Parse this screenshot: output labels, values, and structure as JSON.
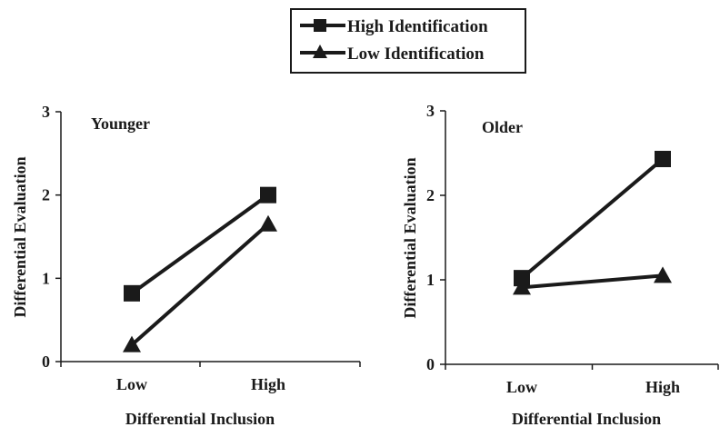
{
  "chart_data": [
    {
      "type": "line",
      "title": "Younger",
      "xlabel": "Differential Inclusion",
      "ylabel": "Differential Evaluation",
      "categories": [
        "Low",
        "High"
      ],
      "ylim": [
        0,
        3
      ],
      "yticks": [
        "0",
        "1",
        "2",
        "3"
      ],
      "series": [
        {
          "name": "High Identification",
          "values": [
            0.82,
            2.0
          ]
        },
        {
          "name": "Low Identification",
          "values": [
            0.2,
            1.65
          ]
        }
      ]
    },
    {
      "type": "line",
      "title": "Older",
      "xlabel": "Differential Inclusion",
      "ylabel": "Differential Evaluation",
      "categories": [
        "Low",
        "High"
      ],
      "ylim": [
        0,
        3
      ],
      "yticks": [
        "0",
        "1",
        "2",
        "3"
      ],
      "series": [
        {
          "name": "High Identification",
          "values": [
            1.02,
            2.43
          ]
        },
        {
          "name": "Low Identification",
          "values": [
            0.91,
            1.05
          ]
        }
      ]
    }
  ],
  "legend": {
    "placement": "top-center",
    "items": [
      {
        "label": "High Identification",
        "marker": "square"
      },
      {
        "label": "Low Identification",
        "marker": "triangle"
      }
    ]
  },
  "colors": {
    "line": "#1a1a1a",
    "background": "#ffffff"
  }
}
